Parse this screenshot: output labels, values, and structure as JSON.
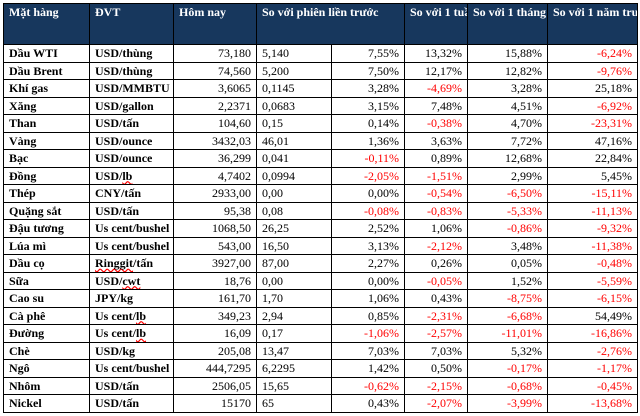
{
  "table": {
    "columns": {
      "item": "Mặt hàng",
      "unit": "ĐVT",
      "today": "Hôm nay",
      "vs_prev_session": "So với phiên liền trước",
      "vs_week": "So với 1 tuần trước",
      "vs_month": "So với 1 tháng trước",
      "vs_year": "So với 1 năm trước"
    },
    "accent_colors": {
      "header_bg": "#17375d",
      "header_text": "#ffffff",
      "negative_text": "#ff0000"
    },
    "rows": [
      {
        "name": "Dầu WTI",
        "unit": "USD/thùng",
        "today": "73,180",
        "chg": "5,140",
        "pct": "7,55%",
        "week": "13,32%",
        "month": "15,88%",
        "year": "-6,24%"
      },
      {
        "name": "Dầu Brent",
        "unit": "USD/thùng",
        "today": "74,560",
        "chg": "5,200",
        "pct": "7,50%",
        "week": "12,17%",
        "month": "12,82%",
        "year": "-9,76%"
      },
      {
        "name": "Khí gas",
        "unit": "USD/MMBTU",
        "today": "3,6065",
        "chg": "0,1145",
        "pct": "3,28%",
        "week": "-4,69%",
        "month": "3,28%",
        "year": "25,18%"
      },
      {
        "name": "Xăng",
        "unit": "USD/gallon",
        "today": "2,2371",
        "chg": "0,0683",
        "pct": "3,15%",
        "week": "7,48%",
        "month": "4,51%",
        "year": "-6,92%"
      },
      {
        "name": "Than",
        "unit": "USD/tấn",
        "today": "104,60",
        "chg": "0,15",
        "pct": "0,14%",
        "week": "-0,38%",
        "month": "4,70%",
        "year": "-23,31%"
      },
      {
        "name": "Vàng",
        "unit": "USD/ounce",
        "today": "3432,03",
        "chg": "46,01",
        "pct": "1,36%",
        "week": "3,63%",
        "month": "7,72%",
        "year": "47,16%"
      },
      {
        "name": "Bạc",
        "unit": "USD/ounce",
        "today": "36,299",
        "chg": "0,041",
        "pct": "-0,11%",
        "week": "0,89%",
        "month": "12,68%",
        "year": "22,84%"
      },
      {
        "name": "Đồng",
        "unit": "USD/lb",
        "flag": "lb",
        "today": "4,7402",
        "chg": "0,0994",
        "pct": "-2,05%",
        "week": "-1,51%",
        "month": "2,99%",
        "year": "5,45%"
      },
      {
        "name": "Thép",
        "unit": "CNY/tấn",
        "today": "2933,00",
        "chg": "0,00",
        "pct": "0,00%",
        "week": "-0,54%",
        "month": "-6,50%",
        "year": "-15,11%"
      },
      {
        "name": "Quặng sắt",
        "unit": "USD/tấn",
        "today": "95,38",
        "chg": "0,08",
        "pct": "-0,08%",
        "week": "-0,83%",
        "month": "-5,33%",
        "year": "-11,13%"
      },
      {
        "name": "Đậu tương",
        "unit": "Us cent/bushel",
        "today": "1068,50",
        "chg": "26,25",
        "pct": "2,52%",
        "week": "1,06%",
        "month": "-0,86%",
        "year": "-9,32%"
      },
      {
        "name": "Lúa mì",
        "unit": "Us cent/bushel",
        "today": "543,00",
        "chg": "16,50",
        "pct": "3,13%",
        "week": "-2,12%",
        "month": "3,48%",
        "year": "-11,38%"
      },
      {
        "name": "Dầu cọ",
        "unit": "Ringgit/tấn",
        "flag": "Ringgit",
        "today": "3927,00",
        "chg": "87,00",
        "pct": "2,27%",
        "week": "0,26%",
        "month": "0,05%",
        "year": "-0,48%"
      },
      {
        "name": "Sữa",
        "unit": "USD/cwt",
        "flag": "cwt",
        "today": "18,76",
        "chg": "0,00",
        "pct": "0,00%",
        "week": "-0,05%",
        "month": "1,52%",
        "year": "-5,59%"
      },
      {
        "name": "Cao su",
        "unit": "JPY/kg",
        "today": "161,70",
        "chg": "1,70",
        "pct": "1,06%",
        "week": "0,43%",
        "month": "-8,75%",
        "year": "-6,15%"
      },
      {
        "name": "Cà phê",
        "unit": "Us cent/lb",
        "flag": "lb",
        "today": "349,23",
        "chg": "2,94",
        "pct": "0,85%",
        "week": "-2,31%",
        "month": "-6,68%",
        "year": "54,49%"
      },
      {
        "name": "Đường",
        "unit": "Us cent/lb",
        "flag": "lb",
        "today": "16,09",
        "chg": "0,17",
        "pct": "-1,06%",
        "week": "-2,57%",
        "month": "-11,01%",
        "year": "-16,86%"
      },
      {
        "name": "Chè",
        "unit": "USD/kg",
        "today": "205,08",
        "chg": "13,47",
        "pct": "7,03%",
        "week": "7,03%",
        "month": "5,32%",
        "year": "-2,76%"
      },
      {
        "name": "Ngô",
        "unit": "Us cent/bushel",
        "today": "444,7295",
        "chg": "6,2295",
        "pct": "1,42%",
        "week": "0,50%",
        "month": "-0,17%",
        "year": "-1,17%"
      },
      {
        "name": "Nhôm",
        "unit": "USD/tấn",
        "today": "2506,05",
        "chg": "15,65",
        "pct": "-0,62%",
        "week": "-2,15%",
        "month": "-0,68%",
        "year": "-0,45%"
      },
      {
        "name": "Nickel",
        "unit": "USD/tấn",
        "today": "15170",
        "chg": "65",
        "pct": "0,43%",
        "week": "-2,07%",
        "month": "-3,99%",
        "year": "-13,68%"
      }
    ]
  }
}
